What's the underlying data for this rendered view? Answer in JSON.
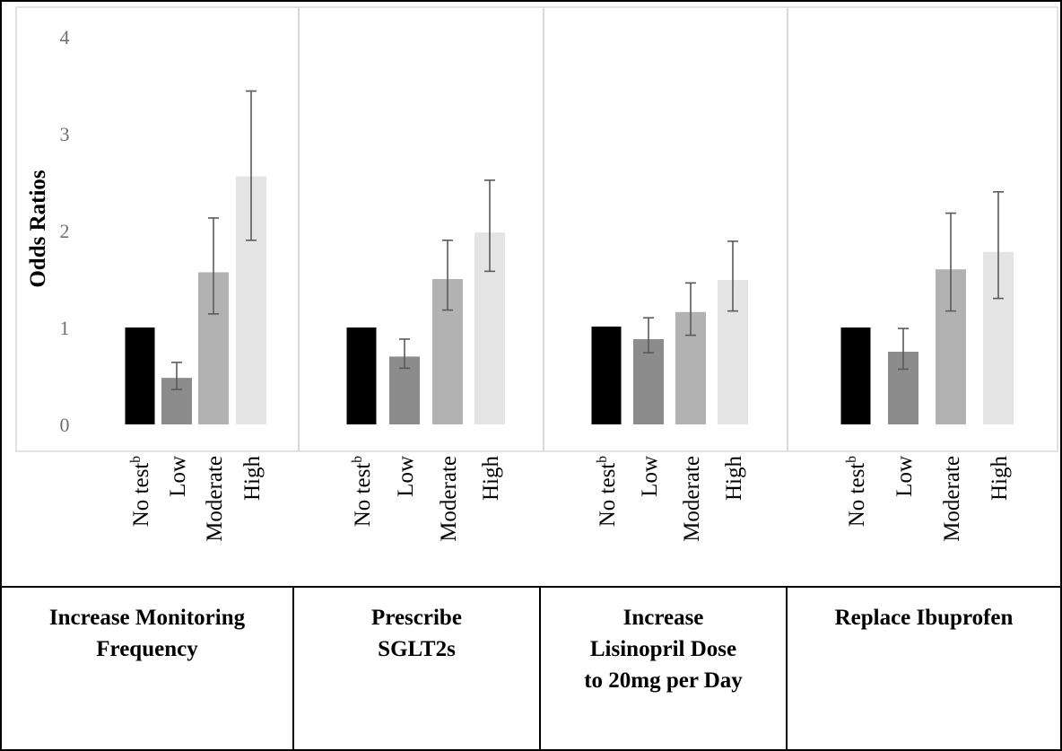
{
  "chart_data": {
    "type": "bar",
    "ylabel": "Odds Ratios",
    "ylim": [
      0,
      4
    ],
    "yticks": [
      0,
      1,
      2,
      3,
      4
    ],
    "grid": false,
    "categories": [
      {
        "base": "No test",
        "sup": "b"
      },
      {
        "base": "Low",
        "sup": ""
      },
      {
        "base": "Moderate",
        "sup": ""
      },
      {
        "base": "High",
        "sup": ""
      }
    ],
    "bar_colors": [
      "#000000",
      "#8c8c8c",
      "#b2b2b2",
      "#e4e4e4"
    ],
    "panels": [
      {
        "label_lines": [
          "Increase Monitoring",
          "Frequency"
        ],
        "values": [
          1.0,
          0.48,
          1.57,
          2.56
        ],
        "ci_low": [
          null,
          0.36,
          1.14,
          1.9
        ],
        "ci_high": [
          null,
          0.64,
          2.13,
          3.44
        ]
      },
      {
        "label_lines": [
          "Prescribe",
          "SGLT2s"
        ],
        "values": [
          1.0,
          0.7,
          1.5,
          1.98
        ],
        "ci_low": [
          null,
          0.58,
          1.18,
          1.58
        ],
        "ci_high": [
          null,
          0.88,
          1.9,
          2.52
        ]
      },
      {
        "label_lines": [
          "Increase",
          "Lisinopril Dose",
          "to 20mg per Day"
        ],
        "values": [
          1.01,
          0.88,
          1.16,
          1.49
        ],
        "ci_low": [
          null,
          0.74,
          0.92,
          1.17
        ],
        "ci_high": [
          null,
          1.1,
          1.46,
          1.89
        ]
      },
      {
        "label_lines": [
          "Replace Ibuprofen"
        ],
        "values": [
          1.0,
          0.75,
          1.6,
          1.78
        ],
        "ci_low": [
          null,
          0.57,
          1.17,
          1.3
        ],
        "ci_high": [
          null,
          0.99,
          2.18,
          2.4
        ]
      }
    ]
  }
}
